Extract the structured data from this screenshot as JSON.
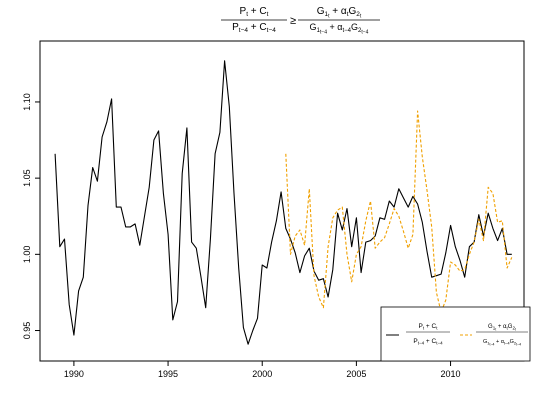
{
  "chart_data": {
    "type": "line",
    "title": {
      "lhs_num": "P_t + C_t",
      "lhs_den": "P_{t-4} + C_{t-4}",
      "relation": "≥",
      "rhs_num": "G_{1_t} + α_t G_{2_t}",
      "rhs_den": "G_{1_{t-4}} + α_{t-4} G_{2_{t-4}}"
    },
    "xlabel": "",
    "ylabel": "",
    "xlim": [
      1988.2,
      2013.9
    ],
    "ylim": [
      0.93,
      1.14
    ],
    "x_ticks": [
      1990,
      1995,
      2000,
      2005,
      2010
    ],
    "x_tick_labels": [
      "1990",
      "1995",
      "2000",
      "2005",
      "2010"
    ],
    "y_ticks": [
      0.95,
      1.0,
      1.05,
      1.1
    ],
    "y_tick_labels": [
      "0.95",
      "1.00",
      "1.05",
      "1.10"
    ],
    "legend_position": "bottom-right",
    "series": [
      {
        "name": "(P_t + C_t) / (P_{t-4} + C_{t-4})",
        "color": "#000000",
        "dash": "solid",
        "x": [
          1989.0,
          1989.25,
          1989.5,
          1989.75,
          1990.0,
          1990.25,
          1990.5,
          1990.75,
          1991.0,
          1991.25,
          1991.5,
          1991.75,
          1992.0,
          1992.25,
          1992.5,
          1992.75,
          1993.0,
          1993.25,
          1993.5,
          1993.75,
          1994.0,
          1994.25,
          1994.5,
          1994.75,
          1995.0,
          1995.25,
          1995.5,
          1995.75,
          1996.0,
          1996.25,
          1996.5,
          1996.75,
          1997.0,
          1997.25,
          1997.5,
          1997.75,
          1998.0,
          1998.25,
          1998.5,
          1998.75,
          1999.0,
          1999.25,
          1999.5,
          1999.75,
          2000.0,
          2000.25,
          2000.5,
          2000.75,
          2001.0,
          2001.25,
          2001.5,
          2001.75,
          2002.0,
          2002.25,
          2002.5,
          2002.75,
          2003.0,
          2003.25,
          2003.5,
          2003.75,
          2004.0,
          2004.25,
          2004.5,
          2004.75,
          2005.0,
          2005.25,
          2005.5,
          2005.75,
          2006.0,
          2006.25,
          2006.5,
          2006.75,
          2007.0,
          2007.25,
          2007.5,
          2007.75,
          2008.0,
          2008.25,
          2008.5,
          2008.75,
          2009.0,
          2009.25,
          2009.5,
          2009.75,
          2010.0,
          2010.25,
          2010.5,
          2010.75,
          2011.0,
          2011.25,
          2011.5,
          2011.75,
          2012.0,
          2012.25,
          2012.5,
          2012.75,
          2013.0,
          2013.25
        ],
        "y": [
          1.066,
          1.005,
          1.01,
          0.967,
          0.947,
          0.976,
          0.985,
          1.032,
          1.057,
          1.048,
          1.077,
          1.087,
          1.102,
          1.031,
          1.031,
          1.018,
          1.018,
          1.02,
          1.006,
          1.025,
          1.044,
          1.075,
          1.081,
          1.04,
          1.013,
          0.957,
          0.969,
          1.053,
          1.083,
          1.008,
          1.004,
          0.985,
          0.965,
          1.01,
          1.066,
          1.08,
          1.127,
          1.097,
          1.04,
          0.991,
          0.952,
          0.941,
          0.95,
          0.958,
          0.993,
          0.991,
          1.008,
          1.022,
          1.041,
          1.017,
          1.01,
          1.001,
          0.988,
          0.999,
          1.004,
          0.989,
          0.983,
          0.984,
          0.972,
          0.99,
          1.027,
          1.016,
          1.03,
          1.005,
          1.024,
          0.988,
          1.008,
          1.009,
          1.012,
          1.024,
          1.023,
          1.035,
          1.031,
          1.043,
          1.037,
          1.031,
          1.038,
          1.033,
          1.021,
          1.002,
          0.985,
          0.986,
          0.987,
          1.001,
          1.019,
          1.005,
          0.996,
          0.985,
          1.005,
          1.008,
          1.026,
          1.012,
          1.027,
          1.017,
          1.009,
          1.017,
          1.0,
          1.0
        ]
      },
      {
        "name": "(G_{1_t} + α_t G_{2_t}) / (G_{1_{t-4}} + α_{t-4} G_{2_{t-4}})",
        "color": "#F0A000",
        "dash": "dashed",
        "x": [
          2001.25,
          2001.5,
          2001.75,
          2002.0,
          2002.25,
          2002.5,
          2002.75,
          2003.0,
          2003.25,
          2003.5,
          2003.75,
          2004.0,
          2004.25,
          2004.5,
          2004.75,
          2005.0,
          2005.25,
          2005.5,
          2005.75,
          2006.0,
          2006.25,
          2006.5,
          2006.75,
          2007.0,
          2007.25,
          2007.5,
          2007.75,
          2008.0,
          2008.25,
          2008.5,
          2008.75,
          2009.0,
          2009.25,
          2009.5,
          2009.75,
          2010.0,
          2010.25,
          2010.5,
          2010.75,
          2011.0,
          2011.25,
          2011.5,
          2011.75,
          2012.0,
          2012.25,
          2012.5,
          2012.75,
          2013.0,
          2013.25
        ],
        "y": [
          1.066,
          1.0,
          1.012,
          1.016,
          1.006,
          1.043,
          0.986,
          0.972,
          0.965,
          1.005,
          1.024,
          1.029,
          1.031,
          1.0,
          0.982,
          1.0,
          1.005,
          1.022,
          1.035,
          1.004,
          1.008,
          1.011,
          1.02,
          1.03,
          1.025,
          1.015,
          1.004,
          1.013,
          1.094,
          1.064,
          1.042,
          1.018,
          0.975,
          0.962,
          0.97,
          0.995,
          0.993,
          0.989,
          0.99,
          1.0,
          1.008,
          1.023,
          1.009,
          1.044,
          1.04,
          1.021,
          1.022,
          0.991,
          0.998
        ]
      }
    ]
  }
}
